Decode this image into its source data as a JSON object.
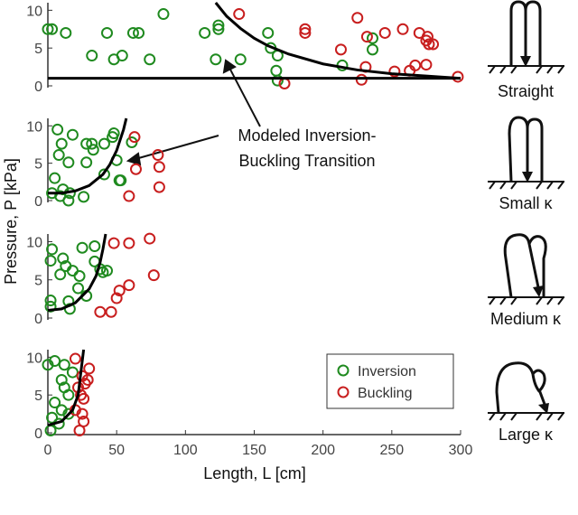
{
  "chart_data": [
    {
      "type": "scatter",
      "xlim": [
        0,
        300
      ],
      "ylim": [
        0,
        11
      ],
      "yticks": [
        0,
        5,
        10
      ],
      "series": [
        {
          "name": "Inversion",
          "color": "#1f8a1f",
          "x": [
            0,
            3,
            13,
            32,
            43,
            48,
            54,
            62,
            66,
            74,
            84,
            114,
            122,
            124,
            124,
            140,
            160,
            162,
            167,
            166,
            167,
            214,
            236,
            236
          ],
          "values": [
            7.5,
            7.5,
            7,
            4,
            7,
            3.5,
            4,
            7,
            7,
            3.5,
            9.5,
            7,
            3.5,
            8,
            7.5,
            3.5,
            7,
            5,
            4,
            2,
            0.7,
            2.7,
            4.8,
            6.3
          ]
        },
        {
          "name": "Buckling",
          "color": "#c81e1e",
          "x": [
            139,
            187,
            187,
            172,
            213,
            225,
            231,
            232,
            245,
            252,
            258,
            263,
            267,
            270,
            275,
            276,
            277,
            280,
            275,
            298,
            228
          ],
          "values": [
            9.5,
            7.5,
            7,
            0.3,
            4.8,
            9,
            2.5,
            6.5,
            7,
            1.9,
            7.5,
            2,
            2.7,
            7,
            6,
            6.5,
            5.5,
            5.5,
            2.8,
            1.2,
            0.8
          ]
        },
        {
          "type": "line",
          "color": "#000000",
          "x": [
            122,
            130,
            140,
            150,
            160,
            175,
            200,
            225,
            250,
            275,
            300
          ],
          "values": [
            11,
            9.2,
            7.6,
            6.3,
            5.3,
            4.2,
            2.9,
            2.1,
            1.6,
            1.3,
            1.0
          ]
        },
        {
          "type": "line",
          "color": "#000000",
          "x": [
            0,
            300
          ],
          "values": [
            1,
            1
          ]
        }
      ]
    },
    {
      "type": "scatter",
      "xlim": [
        0,
        300
      ],
      "ylim": [
        0,
        11
      ],
      "yticks": [
        0,
        5,
        10
      ],
      "series": [
        {
          "name": "Inversion",
          "color": "#1f8a1f",
          "x": [
            7,
            18,
            10,
            28,
            8,
            28,
            15,
            5,
            11,
            16,
            15,
            26,
            32,
            33,
            41,
            47,
            41,
            50,
            53,
            52,
            61,
            48,
            9,
            3
          ],
          "values": [
            9.5,
            8.8,
            7.6,
            7.6,
            6.1,
            5.1,
            5.1,
            3,
            1.5,
            1,
            0,
            0.5,
            7.6,
            6.8,
            7.6,
            8.5,
            3.5,
            5.4,
            2.7,
            2.7,
            7.8,
            9.0,
            0.6,
            1
          ]
        },
        {
          "name": "Buckling",
          "color": "#c81e1e",
          "x": [
            63,
            80,
            81,
            81,
            59,
            64
          ],
          "values": [
            8.5,
            6.1,
            4.5,
            1.8,
            0.6,
            4.2
          ]
        },
        {
          "type": "line",
          "color": "#000000",
          "x": [
            0,
            10,
            20,
            30,
            40,
            45,
            50,
            55,
            57
          ],
          "values": [
            1,
            1,
            1.3,
            2,
            3.5,
            4.8,
            6.7,
            9.5,
            11
          ]
        }
      ]
    },
    {
      "type": "scatter",
      "xlim": [
        0,
        300
      ],
      "ylim": [
        0,
        11
      ],
      "yticks": [
        0,
        5,
        10
      ],
      "series": [
        {
          "name": "Inversion",
          "color": "#1f8a1f",
          "x": [
            3,
            2,
            11,
            13,
            18,
            23,
            9,
            2,
            2,
            15,
            16,
            25,
            34,
            34,
            38,
            40,
            28,
            22,
            43
          ],
          "values": [
            9,
            7.5,
            7.8,
            6.8,
            6.2,
            5.5,
            5.7,
            2.3,
            1.5,
            2.2,
            1.2,
            9.2,
            9.4,
            7.4,
            6.4,
            6,
            2.9,
            3.9,
            6.2
          ]
        },
        {
          "name": "Buckling",
          "color": "#c81e1e",
          "x": [
            74,
            77,
            52,
            50,
            38,
            46,
            59,
            59,
            48
          ],
          "values": [
            10.4,
            5.6,
            3.6,
            2.6,
            0.8,
            0.8,
            4.3,
            9.8,
            9.8
          ]
        },
        {
          "type": "line",
          "color": "#000000",
          "x": [
            0,
            10,
            20,
            30,
            35,
            38,
            40,
            42
          ],
          "values": [
            1,
            1.2,
            2,
            3.8,
            5.5,
            7.3,
            9,
            11
          ]
        }
      ]
    },
    {
      "type": "scatter",
      "xlim": [
        0,
        300
      ],
      "ylim": [
        0,
        11
      ],
      "yticks": [
        0,
        5,
        10
      ],
      "xticks": [
        0,
        50,
        100,
        150,
        200,
        250,
        300
      ],
      "legend": "upper right",
      "series": [
        {
          "name": "Inversion",
          "color": "#1f8a1f",
          "x": [
            0,
            5,
            10,
            12,
            15,
            5,
            3,
            10,
            15,
            18,
            12,
            2,
            8
          ],
          "values": [
            9,
            9.5,
            7,
            6,
            5,
            4,
            2,
            3,
            2.5,
            8,
            9,
            0.3,
            1.2
          ]
        },
        {
          "name": "Buckling",
          "color": "#c81e1e",
          "x": [
            20,
            25,
            27,
            22,
            30,
            29,
            24,
            26,
            25,
            26,
            20,
            23
          ],
          "values": [
            9.8,
            7.5,
            6.5,
            6,
            8.5,
            7,
            5,
            4.5,
            2.5,
            1.5,
            3,
            0.3
          ]
        },
        {
          "type": "line",
          "color": "#000000",
          "x": [
            0,
            10,
            18,
            22,
            24,
            26
          ],
          "values": [
            1,
            1.5,
            3,
            5,
            8,
            11
          ]
        }
      ]
    }
  ],
  "x_label": "Length, L [cm]",
  "y_label": "Pressure, P [kPa]",
  "annotation": [
    "Modeled Inversion-",
    "Buckling Transition"
  ],
  "diagram_labels": [
    "Straight",
    "Small κ",
    "Medium κ",
    "Large κ"
  ]
}
